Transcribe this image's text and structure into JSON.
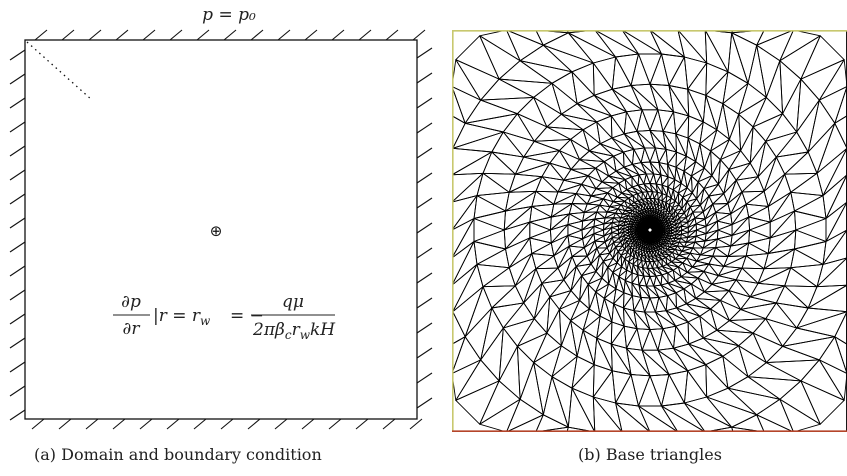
{
  "figure_a": {
    "top_condition": "p = p₀",
    "well_symbol": "⊕",
    "equation": {
      "lhs_numerator": "∂p",
      "lhs_denominator": "∂r",
      "condition": "|r = r",
      "condition_sub": "w",
      "sign": "= −",
      "rhs_numerator": "qμ",
      "rhs_denominator": "2πβ",
      "rhs_den_sub_c": "c",
      "rhs_den_r": "r",
      "rhs_den_sub_w": "w",
      "rhs_den_tail": "kH"
    },
    "caption": "(a)  Domain and boundary condition"
  },
  "figure_b": {
    "caption": "(b)  Base triangles",
    "colors": {
      "mesh": "#000000",
      "left_edge": "#c8c86e",
      "top_edge": "#c8c86e",
      "bottom_edge": "#b5452a"
    }
  }
}
